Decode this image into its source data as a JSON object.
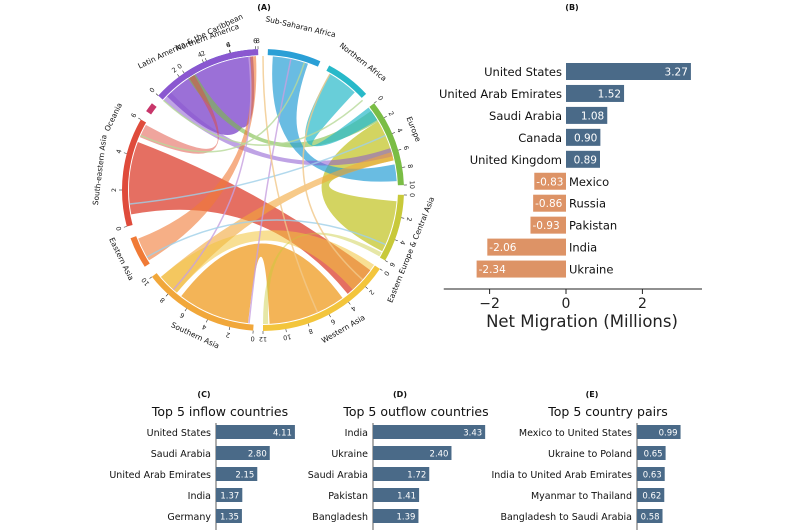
{
  "panels": {
    "a_label": "(A)",
    "b_label": "(B)",
    "c_label": "(C)",
    "d_label": "(D)",
    "e_label": "(E)"
  },
  "colors": {
    "positive": "#4a6a88",
    "negative": "#dd9366"
  },
  "chart_data": [
    {
      "type": "chord",
      "panel": "A",
      "title": "",
      "regions": [
        {
          "name": "Northern America",
          "color": "#1f57c3",
          "ticks": [
            "0",
            "2",
            "4",
            "6"
          ]
        },
        {
          "name": "Sub-Saharan Africa",
          "color": "#2a9fd6",
          "ticks": []
        },
        {
          "name": "Northern Africa",
          "color": "#28b9c9",
          "ticks": []
        },
        {
          "name": "Europe",
          "color": "#7abd45",
          "ticks": [
            "0",
            "2",
            "4",
            "6",
            "8",
            "10"
          ]
        },
        {
          "name": "Eastern Europe & Central Asia",
          "color": "#c8c93a",
          "ticks": [
            "0",
            "2",
            "4",
            "6"
          ]
        },
        {
          "name": "Western Asia",
          "color": "#f3c53c",
          "ticks": [
            "0",
            "2",
            "4",
            "6",
            "8",
            "10",
            "12"
          ]
        },
        {
          "name": "Southern Asia",
          "color": "#f1a73a",
          "ticks": [
            "0",
            "2",
            "4",
            "6",
            "8",
            "10"
          ]
        },
        {
          "name": "Eastern Asia",
          "color": "#f07a36",
          "ticks": []
        },
        {
          "name": "South-eastern Asia",
          "color": "#df4b3b",
          "ticks": [
            "0",
            "2",
            "4",
            "6"
          ]
        },
        {
          "name": "Oceania",
          "color": "#c8366a",
          "ticks": []
        },
        {
          "name": "Latin America & the Caribbean",
          "color": "#8a57d0",
          "ticks": [
            "0",
            "2",
            "4",
            "6",
            "8"
          ]
        }
      ]
    },
    {
      "type": "bar",
      "panel": "B",
      "orientation": "horizontal",
      "categories": [
        "United States",
        "United Arab Emirates",
        "Saudi Arabia",
        "Canada",
        "United Kingdom",
        "Mexico",
        "Russia",
        "Pakistan",
        "India",
        "Ukraine"
      ],
      "values": [
        3.27,
        1.52,
        1.08,
        0.9,
        0.89,
        -0.83,
        -0.86,
        -0.93,
        -2.06,
        -2.34
      ],
      "value_labels": [
        "3.27",
        "1.52",
        "1.08",
        "0.90",
        "0.89",
        "-0.83",
        "-0.86",
        "-0.93",
        "-2.06",
        "-2.34"
      ],
      "xlabel": "Net Migration (Millions)",
      "xlim": [
        -3.2,
        3.5
      ],
      "xticks": [
        -2,
        0,
        2
      ],
      "xtick_labels": [
        "−2",
        "0",
        "2"
      ]
    },
    {
      "type": "bar",
      "panel": "C",
      "orientation": "horizontal",
      "title": "Top 5 inflow countries",
      "categories": [
        "United States",
        "Saudi Arabia",
        "United Arab Emirates",
        "India",
        "Germany"
      ],
      "values": [
        4.11,
        2.8,
        2.15,
        1.37,
        1.35
      ],
      "value_labels": [
        "4.11",
        "2.80",
        "2.15",
        "1.37",
        "1.35"
      ]
    },
    {
      "type": "bar",
      "panel": "D",
      "orientation": "horizontal",
      "title": "Top 5 outflow countries",
      "categories": [
        "India",
        "Ukraine",
        "Saudi Arabia",
        "Pakistan",
        "Bangladesh"
      ],
      "values": [
        3.43,
        2.4,
        1.72,
        1.41,
        1.39
      ],
      "value_labels": [
        "3.43",
        "2.40",
        "1.72",
        "1.41",
        "1.39"
      ]
    },
    {
      "type": "bar",
      "panel": "E",
      "orientation": "horizontal",
      "title": "Top 5 country pairs",
      "categories": [
        "Mexico to United States",
        "Ukraine to Poland",
        "India to United Arab Emirates",
        "Myanmar to Thailand",
        "Bangladesh to Saudi Arabia"
      ],
      "values": [
        0.99,
        0.65,
        0.63,
        0.62,
        0.58
      ],
      "value_labels": [
        "0.99",
        "0.65",
        "0.63",
        "0.62",
        "0.58"
      ]
    }
  ]
}
